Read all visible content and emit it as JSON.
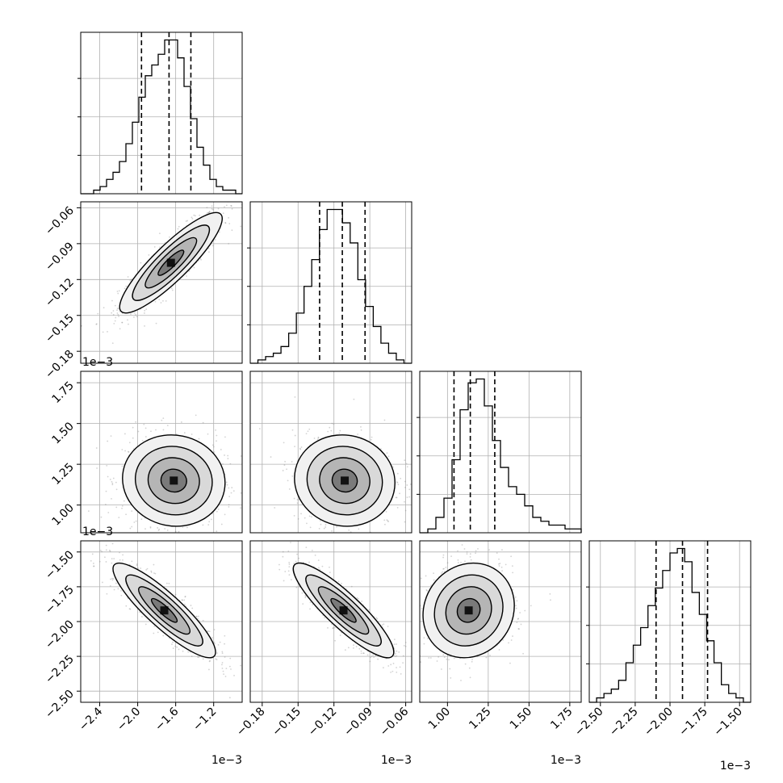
{
  "chart_data": {
    "type": "corner",
    "description_free": true,
    "grid": true,
    "colors": {
      "hist": "#000000",
      "points": "#808080",
      "contour": "#000000",
      "quantile": "#000000",
      "grid": "#b0b0b0"
    },
    "parameters": [
      {
        "range": [
          -2.6,
          -0.9
        ],
        "ticks": [
          -2.4,
          -2.0,
          -1.6,
          -1.2
        ],
        "tick_labels": [
          "−2.4",
          "−2.0",
          "−1.6",
          "−1.2"
        ],
        "offset_label": "1e−3",
        "quantiles": [
          -1.96,
          -1.67,
          -1.44
        ],
        "hist": [
          0,
          0,
          1,
          2,
          4,
          6,
          9,
          14,
          20,
          27,
          33,
          36,
          39,
          43,
          43,
          38,
          30,
          21,
          13,
          8,
          4,
          2,
          1,
          1,
          0
        ]
      },
      {
        "range": [
          -0.19,
          -0.055
        ],
        "ticks": [
          -0.18,
          -0.15,
          -0.12,
          -0.09,
          -0.06
        ],
        "tick_labels": [
          "−0.18",
          "−0.15",
          "−0.12",
          "−0.09",
          "−0.06"
        ],
        "offset_label": "1e−3",
        "quantiles": [
          -0.132,
          -0.113,
          -0.094
        ],
        "hist": [
          0,
          1,
          2,
          3,
          5,
          9,
          15,
          23,
          31,
          40,
          46,
          46,
          42,
          36,
          25,
          17,
          11,
          6,
          3,
          1,
          0
        ]
      },
      {
        "range": [
          0.83,
          1.82
        ],
        "ticks": [
          1.0,
          1.25,
          1.5,
          1.75
        ],
        "tick_labels": [
          "1.00",
          "1.25",
          "1.50",
          "1.75"
        ],
        "offset_label": "1e−3",
        "quantiles": [
          1.04,
          1.14,
          1.29
        ],
        "hist": [
          0,
          1,
          4,
          9,
          19,
          32,
          39,
          40,
          33,
          24,
          17,
          12,
          10,
          7,
          4,
          3,
          2,
          2,
          1,
          1
        ]
      },
      {
        "range": [
          -2.58,
          -1.42
        ],
        "ticks": [
          -2.5,
          -2.25,
          -2.0,
          -1.75,
          -1.5
        ],
        "tick_labels": [
          "−2.50",
          "−2.25",
          "−2.00",
          "−1.75",
          "−1.50"
        ],
        "offset_label": "1e−3",
        "quantiles": [
          -2.1,
          -1.91,
          -1.73
        ],
        "hist": [
          0,
          1,
          2,
          3,
          5,
          9,
          13,
          17,
          22,
          26,
          30,
          34,
          35,
          32,
          25,
          20,
          14,
          9,
          4,
          2,
          1,
          0
        ]
      }
    ],
    "pairs": [
      {
        "row": 1,
        "col": 0,
        "mean": [
          -1.65,
          -0.106
        ],
        "sd": [
          0.27,
          0.021
        ],
        "rho": 0.88
      },
      {
        "row": 2,
        "col": 0,
        "mean": [
          -1.62,
          1.15
        ],
        "sd": [
          0.27,
          0.14
        ],
        "rho": -0.05
      },
      {
        "row": 2,
        "col": 1,
        "mean": [
          -0.111,
          1.15
        ],
        "sd": [
          0.021,
          0.14
        ],
        "rho": -0.05
      },
      {
        "row": 3,
        "col": 0,
        "mean": [
          -1.72,
          -1.92
        ],
        "sd": [
          0.27,
          0.17
        ],
        "rho": -0.88
      },
      {
        "row": 3,
        "col": 1,
        "mean": [
          -0.112,
          -1.92
        ],
        "sd": [
          0.021,
          0.17
        ],
        "rho": -0.88
      },
      {
        "row": 3,
        "col": 2,
        "mean": [
          1.13,
          -1.92
        ],
        "sd": [
          0.14,
          0.17
        ],
        "rho": 0.1
      }
    ]
  }
}
